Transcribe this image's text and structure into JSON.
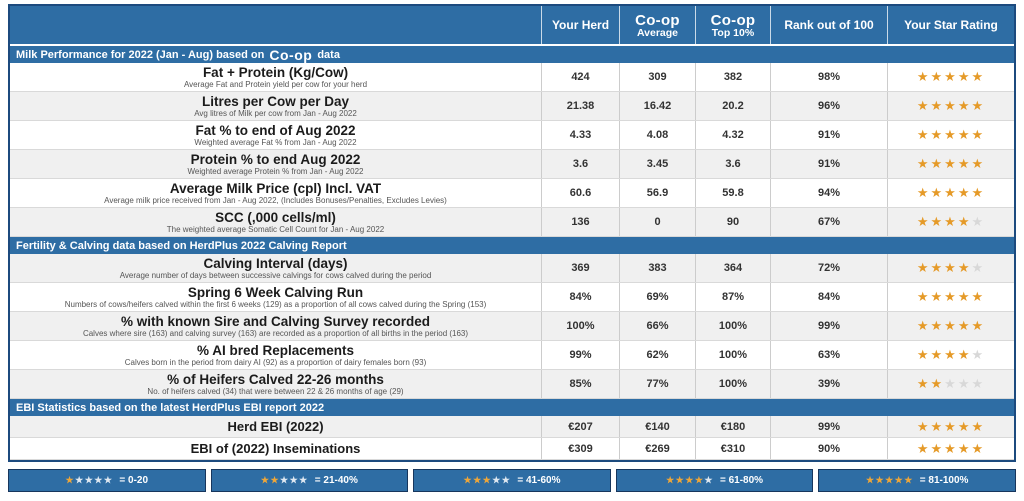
{
  "colors": {
    "header_blue": "#2e6da4",
    "outer_border": "#1c4a7e",
    "star_gold": "#e59a28",
    "star_gray": "#d8d8d8",
    "alt_row": "#f0f0f0"
  },
  "table": {
    "columns": {
      "your_herd": "Your Herd",
      "coop_avg_line1": "Co-op",
      "coop_avg_line2": "Average",
      "coop_top_line1": "Co-op",
      "coop_top_line2": "Top 10%",
      "rank": "Rank out of 100",
      "star_rating": "Your Star Rating"
    },
    "sections": [
      {
        "title": "Milk Performance for 2022 (Jan - Aug) based on",
        "brand": "Co-op",
        "suffix": "data",
        "rows": [
          {
            "title": "Fat + Protein (Kg/Cow)",
            "subtitle": "Average Fat and Protein yield per cow for your herd",
            "your_herd": "424",
            "coop_avg": "309",
            "coop_top10": "382",
            "rank": "98%",
            "stars_on": "★★★★★",
            "stars_off": ""
          },
          {
            "title": "Litres per Cow per Day",
            "subtitle": "Avg litres of Milk per cow from Jan - Aug 2022",
            "your_herd": "21.38",
            "coop_avg": "16.42",
            "coop_top10": "20.2",
            "rank": "96%",
            "stars_on": "★★★★★",
            "stars_off": ""
          },
          {
            "title": "Fat % to end of Aug 2022",
            "subtitle": "Weighted average Fat % from Jan - Aug 2022",
            "your_herd": "4.33",
            "coop_avg": "4.08",
            "coop_top10": "4.32",
            "rank": "91%",
            "stars_on": "★★★★★",
            "stars_off": ""
          },
          {
            "title": "Protein % to end Aug 2022",
            "subtitle": "Weighted average Protein % from Jan - Aug 2022",
            "your_herd": "3.6",
            "coop_avg": "3.45",
            "coop_top10": "3.6",
            "rank": "91%",
            "stars_on": "★★★★★",
            "stars_off": ""
          },
          {
            "title": "Average Milk Price (cpl) Incl. VAT",
            "subtitle": "Average milk price received from Jan - Aug 2022, (Includes Bonuses/Penalties, Excludes Levies)",
            "your_herd": "60.6",
            "coop_avg": "56.9",
            "coop_top10": "59.8",
            "rank": "94%",
            "stars_on": "★★★★★",
            "stars_off": ""
          },
          {
            "title": "SCC (,000 cells/ml)",
            "subtitle": "The weighted average Somatic Cell Count for Jan - Aug 2022",
            "your_herd": "136",
            "coop_avg": "0",
            "coop_top10": "90",
            "rank": "67%",
            "stars_on": "★★★★",
            "stars_off": "★"
          }
        ]
      },
      {
        "title": "Fertility & Calving data based on HerdPlus 2022 Calving Report",
        "brand": "",
        "suffix": "",
        "rows": [
          {
            "title": "Calving Interval (days)",
            "subtitle": "Average number of days between successive calvings for cows calved during the period",
            "your_herd": "369",
            "coop_avg": "383",
            "coop_top10": "364",
            "rank": "72%",
            "stars_on": "★★★★",
            "stars_off": "★"
          },
          {
            "title": "Spring 6 Week Calving Run",
            "subtitle": "Numbers of cows/heifers calved within the first 6 weeks (129) as a proportion of all cows calved during the Spring (153)",
            "your_herd": "84%",
            "coop_avg": "69%",
            "coop_top10": "87%",
            "rank": "84%",
            "stars_on": "★★★★★",
            "stars_off": ""
          },
          {
            "title": "% with known Sire and Calving Survey recorded",
            "subtitle": "Calves where sire (163) and calving survey (163) are recorded as a proportion of all births in the period (163)",
            "your_herd": "100%",
            "coop_avg": "66%",
            "coop_top10": "100%",
            "rank": "99%",
            "stars_on": "★★★★★",
            "stars_off": ""
          },
          {
            "title": "% AI bred Replacements",
            "subtitle": "Calves born in the period from dairy AI (92) as a proportion of dairy females born (93)",
            "your_herd": "99%",
            "coop_avg": "62%",
            "coop_top10": "100%",
            "rank": "63%",
            "stars_on": "★★★★",
            "stars_off": "★"
          },
          {
            "title": "% of Heifers Calved 22-26 months",
            "subtitle": "No. of heifers calved (34) that were between 22 & 26 months of age (29)",
            "your_herd": "85%",
            "coop_avg": "77%",
            "coop_top10": "100%",
            "rank": "39%",
            "stars_on": "★★",
            "stars_off": "★★★"
          }
        ]
      },
      {
        "title": "EBI Statistics based on the latest HerdPlus EBI report 2022",
        "brand": "",
        "suffix": "",
        "rows": [
          {
            "title": "Herd EBI (2022)",
            "subtitle": "",
            "your_herd": "€207",
            "coop_avg": "€140",
            "coop_top10": "€180",
            "rank": "99%",
            "stars_on": "★★★★★",
            "stars_off": ""
          },
          {
            "title": "EBI of (2022) Inseminations",
            "subtitle": "",
            "your_herd": "€309",
            "coop_avg": "€269",
            "coop_top10": "€310",
            "rank": "90%",
            "stars_on": "★★★★★",
            "stars_off": ""
          }
        ]
      }
    ]
  },
  "legend": [
    {
      "stars_on": "★",
      "stars_off": "★★★★",
      "label": "= 0-20"
    },
    {
      "stars_on": "★★",
      "stars_off": "★★★",
      "label": "= 21-40%"
    },
    {
      "stars_on": "★★★",
      "stars_off": "★★",
      "label": "= 41-60%"
    },
    {
      "stars_on": "★★★★",
      "stars_off": "★",
      "label": "= 61-80%"
    },
    {
      "stars_on": "★★★★★",
      "stars_off": "",
      "label": "= 81-100%"
    }
  ]
}
